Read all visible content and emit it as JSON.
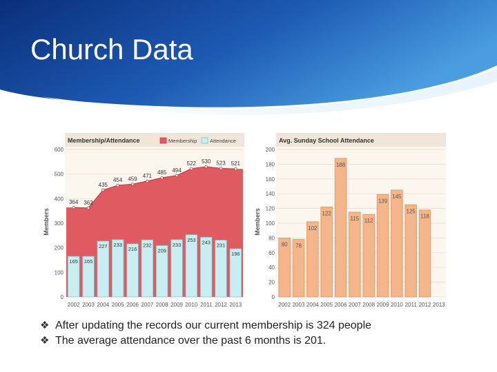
{
  "slide": {
    "title": "Church Data",
    "bullets": [
      "After updating the records our current membership is 324 people",
      "The average attendance over the past 6 months is 201."
    ],
    "bullet_icon": "diamond-bullet-icon"
  },
  "colors": {
    "header_dark": "#0c3a8c",
    "header_light": "#3f8fd8",
    "membership_area": "#e05a62",
    "membership_line": "#c83a45",
    "attendance_bar": "#c8eef2",
    "attendance_bar_stroke": "#7fc6cf",
    "sunday_bar": "#f5b58a",
    "sunday_bar_stroke": "#e09060",
    "chart_bg": "#fbf6ee"
  },
  "chart_data": [
    {
      "type": "area+bar",
      "title": "Membership/Attendance",
      "legend": [
        "Membership",
        "Attendance"
      ],
      "legend_position": "top-right",
      "ylabel": "Members",
      "ylim": [
        0,
        600
      ],
      "yticks": [
        "0",
        "100",
        "200",
        "300",
        "400",
        "500",
        "600"
      ],
      "categories": [
        "2002",
        "2003",
        "2004",
        "2005",
        "2006",
        "2007",
        "2008",
        "2009",
        "2010",
        "2011",
        "2012",
        "2013"
      ],
      "series": [
        {
          "name": "Membership",
          "type": "area",
          "values": [
            364,
            362,
            435,
            454,
            459,
            471,
            485,
            494,
            522,
            530,
            523,
            521
          ]
        },
        {
          "name": "Attendance",
          "type": "bar",
          "values": [
            165,
            165,
            227,
            233,
            216,
            232,
            209,
            233,
            253,
            243,
            231,
            196
          ]
        }
      ],
      "grid": true
    },
    {
      "type": "bar",
      "title": "Avg. Sunday School Attendance",
      "ylabel": "Members",
      "ylim": [
        0,
        200
      ],
      "yticks": [
        "0",
        "20",
        "40",
        "60",
        "80",
        "100",
        "120",
        "140",
        "160",
        "180",
        "200"
      ],
      "categories": [
        "2002",
        "2003",
        "2004",
        "2005",
        "2006",
        "2007",
        "2008",
        "2009",
        "2010",
        "2011",
        "2012",
        "2013"
      ],
      "values": [
        80,
        78,
        102,
        122,
        188,
        115,
        112,
        139,
        145,
        125,
        118,
        null
      ],
      "grid": true
    }
  ]
}
